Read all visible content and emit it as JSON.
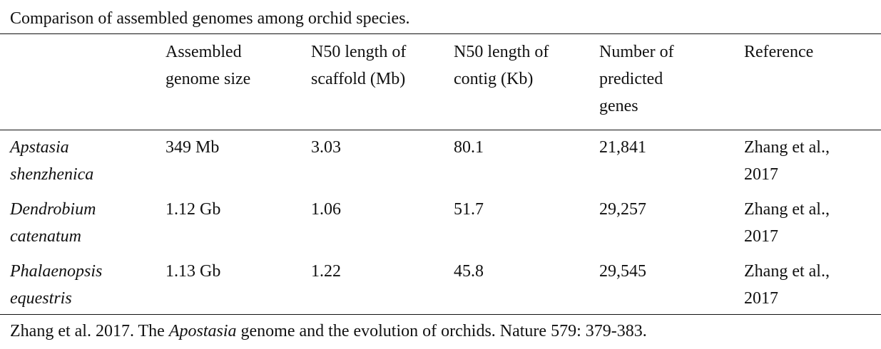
{
  "caption": "Comparison of assembled genomes among orchid species.",
  "headers": [
    [
      "",
      "",
      ""
    ],
    [
      "Assembled",
      "genome size",
      ""
    ],
    [
      "N50 length of",
      "scaffold (Mb)",
      ""
    ],
    [
      "N50 length of",
      "contig (Kb)",
      ""
    ],
    [
      "Number of",
      "predicted",
      "genes"
    ],
    [
      "Reference",
      "",
      ""
    ]
  ],
  "rows": [
    {
      "species": [
        "Apstasia",
        "shenzhenica"
      ],
      "genome_size": "349 Mb",
      "scaffold_n50": "3.03",
      "contig_n50": "80.1",
      "genes": "21,841",
      "reference": [
        "Zhang et al.,",
        "2017"
      ]
    },
    {
      "species": [
        "Dendrobium",
        "catenatum"
      ],
      "genome_size": "1.12 Gb",
      "scaffold_n50": "1.06",
      "contig_n50": "51.7",
      "genes": "29,257",
      "reference": [
        "Zhang et al.,",
        "2017"
      ]
    },
    {
      "species": [
        "Phalaenopsis",
        "equestris"
      ],
      "genome_size": "1.13 Gb",
      "scaffold_n50": "1.22",
      "contig_n50": "45.8",
      "genes": "29,545",
      "reference": [
        "Zhang et al.,",
        "2017"
      ]
    }
  ],
  "footnote": {
    "before": "Zhang et al. 2017. The ",
    "italic": "Apostasia",
    "after": " genome and the evolution of orchids. Nature 579: 379-383."
  }
}
